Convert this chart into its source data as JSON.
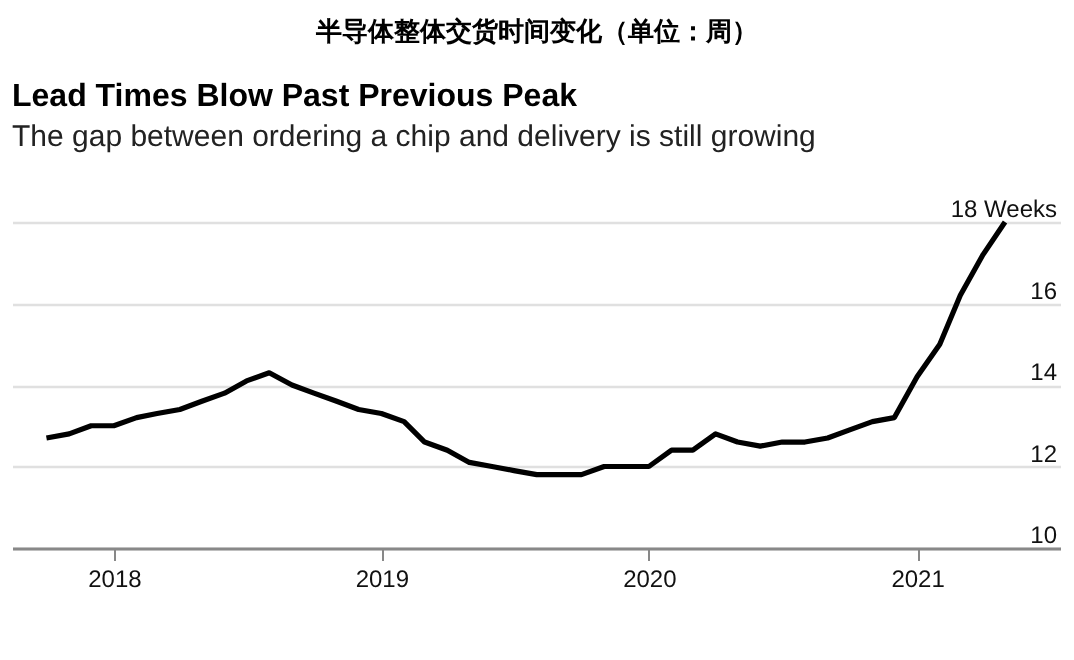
{
  "chart_data": {
    "type": "line",
    "title": "半导体整体交货时间变化（单位：周）",
    "subtitle": "Lead Times Blow Past Previous Peak",
    "annotations": [
      "The gap between ordering a chip and delivery is still growing"
    ],
    "x": [
      "2017-10",
      "2017-11",
      "2017-12",
      "2018-01",
      "2018-02",
      "2018-03",
      "2018-04",
      "2018-05",
      "2018-06",
      "2018-07",
      "2018-08",
      "2018-09",
      "2018-10",
      "2018-11",
      "2018-12",
      "2019-01",
      "2019-02",
      "2019-03",
      "2019-04",
      "2019-05",
      "2019-06",
      "2019-07",
      "2019-08",
      "2019-09",
      "2019-10",
      "2019-11",
      "2019-12",
      "2020-01",
      "2020-02",
      "2020-03",
      "2020-04",
      "2020-05",
      "2020-06",
      "2020-07",
      "2020-08",
      "2020-09",
      "2020-10",
      "2020-11",
      "2020-12",
      "2021-01",
      "2021-02",
      "2021-03",
      "2021-04",
      "2021-05"
    ],
    "series": [
      {
        "color": "#000000",
        "values": [
          12.7,
          12.8,
          13.0,
          13.0,
          13.2,
          13.3,
          13.4,
          13.6,
          13.8,
          14.1,
          14.3,
          14.0,
          13.8,
          13.6,
          13.4,
          13.3,
          13.1,
          12.6,
          12.4,
          12.1,
          12.0,
          11.9,
          11.8,
          11.8,
          11.8,
          12.0,
          12.0,
          12.0,
          12.4,
          12.4,
          12.8,
          12.6,
          12.5,
          12.6,
          12.6,
          12.7,
          12.9,
          13.1,
          13.2,
          14.2,
          15.0,
          16.2,
          17.2,
          18.0
        ]
      }
    ],
    "xlim": [
      "2017-08-15",
      "2021-07-15"
    ],
    "xticks": [
      "2018",
      "2019",
      "2020",
      "2021"
    ],
    "ylim": [
      10,
      18
    ],
    "yticks": [
      10,
      12,
      14,
      16,
      {
        "value": 18,
        "label": "18 Weeks"
      }
    ],
    "grid": "y",
    "legend": false,
    "line_style": "solid",
    "marker": "none"
  }
}
